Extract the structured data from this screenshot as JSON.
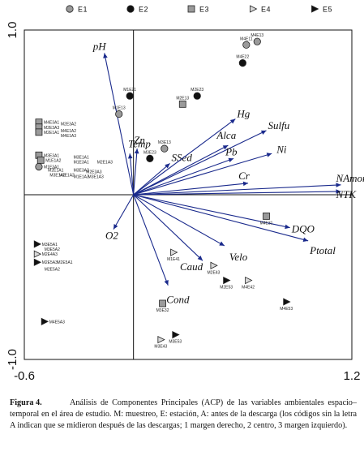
{
  "chart_data": {
    "type": "scatter",
    "xlim": [
      -0.6,
      1.2
    ],
    "ylim": [
      -1.0,
      1.0
    ],
    "x_ticks": [
      {
        "value": -0.6,
        "label": "-0.6"
      },
      {
        "value": 1.2,
        "label": "1.2"
      }
    ],
    "y_ticks": [
      {
        "value": 1.0,
        "label": "1.0"
      },
      {
        "value": -1.0,
        "label": "-1.0"
      }
    ],
    "legend": [
      {
        "code": "E1",
        "name": "E1",
        "marker": "circle-gray"
      },
      {
        "code": "E2",
        "name": "E2",
        "marker": "circle-black"
      },
      {
        "code": "E3",
        "name": "E3",
        "marker": "square-gray"
      },
      {
        "code": "E4",
        "name": "E4",
        "marker": "triangle-gray"
      },
      {
        "code": "E5",
        "name": "E5",
        "marker": "triangle-black"
      }
    ],
    "vectors": [
      {
        "name": "pH",
        "x": -0.16,
        "y": 0.86
      },
      {
        "name": "Temp",
        "x": -0.02,
        "y": 0.25
      },
      {
        "name": "Zn",
        "x": 0.02,
        "y": 0.28
      },
      {
        "name": "SSed",
        "x": 0.2,
        "y": 0.19
      },
      {
        "name": "Alca",
        "x": 0.52,
        "y": 0.3
      },
      {
        "name": "Hg",
        "x": 0.56,
        "y": 0.46
      },
      {
        "name": "Sulfu",
        "x": 0.73,
        "y": 0.39
      },
      {
        "name": "Pb",
        "x": 0.55,
        "y": 0.22
      },
      {
        "name": "Ni",
        "x": 0.76,
        "y": 0.25
      },
      {
        "name": "Cr",
        "x": 0.63,
        "y": 0.07
      },
      {
        "name": "NAmon",
        "x": 1.14,
        "y": 0.06
      },
      {
        "name": "NTK",
        "x": 1.14,
        "y": 0.02
      },
      {
        "name": "DQO",
        "x": 0.86,
        "y": -0.2
      },
      {
        "name": "Ptotal",
        "x": 0.96,
        "y": -0.28
      },
      {
        "name": "Velo",
        "x": 0.5,
        "y": -0.31
      },
      {
        "name": "Caud",
        "x": 0.38,
        "y": -0.4
      },
      {
        "name": "Cond",
        "x": 0.19,
        "y": -0.55
      },
      {
        "name": "O2",
        "x": -0.11,
        "y": -0.21
      }
    ],
    "points": [
      {
        "label": "M4E13",
        "x": 0.68,
        "y": 0.93,
        "marker": "circle-gray"
      },
      {
        "label": "M4E11",
        "x": 0.62,
        "y": 0.91,
        "marker": "circle-gray"
      },
      {
        "label": "M4E22",
        "x": 0.6,
        "y": 0.8,
        "marker": "circle-black"
      },
      {
        "label": "M1E21",
        "x": -0.02,
        "y": 0.6,
        "marker": "circle-black"
      },
      {
        "label": "M2E23",
        "x": 0.35,
        "y": 0.6,
        "marker": "circle-black"
      },
      {
        "label": "M2E13",
        "x": 0.27,
        "y": 0.55,
        "marker": "square-gray"
      },
      {
        "label": "M1E13",
        "x": -0.08,
        "y": 0.49,
        "marker": "circle-gray"
      },
      {
        "label": "M3E13",
        "x": 0.17,
        "y": 0.28,
        "marker": "circle-gray"
      },
      {
        "label": "M3E23",
        "x": 0.09,
        "y": 0.22,
        "marker": "circle-black"
      },
      {
        "label": "M4E3A1",
        "x": -0.52,
        "y": 0.44,
        "marker": "square-gray"
      },
      {
        "label": "M2E3A3",
        "x": -0.52,
        "y": 0.41,
        "marker": "square-gray"
      },
      {
        "label": "M2E1A1",
        "x": -0.52,
        "y": 0.38,
        "marker": "square-gray"
      },
      {
        "label": "M2E3A2",
        "x": -0.4,
        "y": 0.43,
        "marker": "none"
      },
      {
        "label": "M4E1A2",
        "x": -0.4,
        "y": 0.39,
        "marker": "none"
      },
      {
        "label": "M4E1A3",
        "x": -0.4,
        "y": 0.36,
        "marker": "none"
      },
      {
        "label": "M3E3A1",
        "x": -0.52,
        "y": 0.24,
        "marker": "square-gray"
      },
      {
        "label": "M1E1A2",
        "x": -0.51,
        "y": 0.21,
        "marker": "square-gray"
      },
      {
        "label": "M1E3A1",
        "x": -0.52,
        "y": 0.17,
        "marker": "circle-gray"
      },
      {
        "label": "M2E1A1",
        "x": -0.47,
        "y": 0.15,
        "marker": "none"
      },
      {
        "label": "M3E1A2",
        "x": -0.46,
        "y": 0.12,
        "marker": "none"
      },
      {
        "label": "M3E1A1",
        "x": -0.33,
        "y": 0.23,
        "marker": "none"
      },
      {
        "label": "M1E3A1",
        "x": -0.33,
        "y": 0.2,
        "marker": "none"
      },
      {
        "label": "M2E1A3",
        "x": -0.2,
        "y": 0.2,
        "marker": "none"
      },
      {
        "label": "M3E3A2",
        "x": -0.33,
        "y": 0.15,
        "marker": "none"
      },
      {
        "label": "M2E3A3",
        "x": -0.26,
        "y": 0.14,
        "marker": "none"
      },
      {
        "label": "M1E1A2",
        "x": -0.41,
        "y": 0.12,
        "marker": "none"
      },
      {
        "label": "M1E1A3",
        "x": -0.33,
        "y": 0.11,
        "marker": "none"
      },
      {
        "label": "M3E1A3",
        "x": -0.25,
        "y": 0.11,
        "marker": "none"
      },
      {
        "label": "M4E31",
        "x": 0.73,
        "y": -0.13,
        "marker": "square-gray"
      },
      {
        "label": "M1E41",
        "x": 0.22,
        "y": -0.35,
        "marker": "triangle-gray"
      },
      {
        "label": "M2E43",
        "x": 0.44,
        "y": -0.43,
        "marker": "triangle-gray"
      },
      {
        "label": "M2E53",
        "x": 0.51,
        "y": -0.52,
        "marker": "triangle-black"
      },
      {
        "label": "M4E42",
        "x": 0.63,
        "y": -0.52,
        "marker": "triangle-gray"
      },
      {
        "label": "M4E53",
        "x": 0.84,
        "y": -0.65,
        "marker": "triangle-black"
      },
      {
        "label": "M3E32",
        "x": 0.16,
        "y": -0.66,
        "marker": "square-gray"
      },
      {
        "label": "M3E53",
        "x": 0.23,
        "y": -0.85,
        "marker": "triangle-black"
      },
      {
        "label": "M3E43",
        "x": 0.15,
        "y": -0.88,
        "marker": "triangle-gray"
      },
      {
        "label": "M3E5A1",
        "x": -0.53,
        "y": -0.3,
        "marker": "triangle-black"
      },
      {
        "label": "M3E5A2",
        "x": -0.49,
        "y": -0.33,
        "marker": "none"
      },
      {
        "label": "M2E4A3",
        "x": -0.53,
        "y": -0.36,
        "marker": "triangle-gray"
      },
      {
        "label": "M2E5A1",
        "x": -0.42,
        "y": -0.41,
        "marker": "none"
      },
      {
        "label": "M2E5A3",
        "x": -0.53,
        "y": -0.41,
        "marker": "triangle-black"
      },
      {
        "label": "M2E5A2",
        "x": -0.49,
        "y": -0.45,
        "marker": "none"
      },
      {
        "label": "M4E5A3",
        "x": -0.49,
        "y": -0.77,
        "marker": "triangle-black"
      }
    ]
  },
  "caption": {
    "label": "Figura 4.",
    "text": "Análisis de Componentes Principales (ACP) de las variables ambientales espacio–temporal en el área de estudio. M: muestreo, E: estación, A: antes de la descarga (los códigos sin la letra A indican que se midieron después de las descargas; 1 margen derecho, 2 centro, 3 margen izquierdo)."
  },
  "colors": {
    "gray_marker": "#9a9a9a",
    "black_marker": "#111111",
    "vector": "#1a2a8c"
  }
}
